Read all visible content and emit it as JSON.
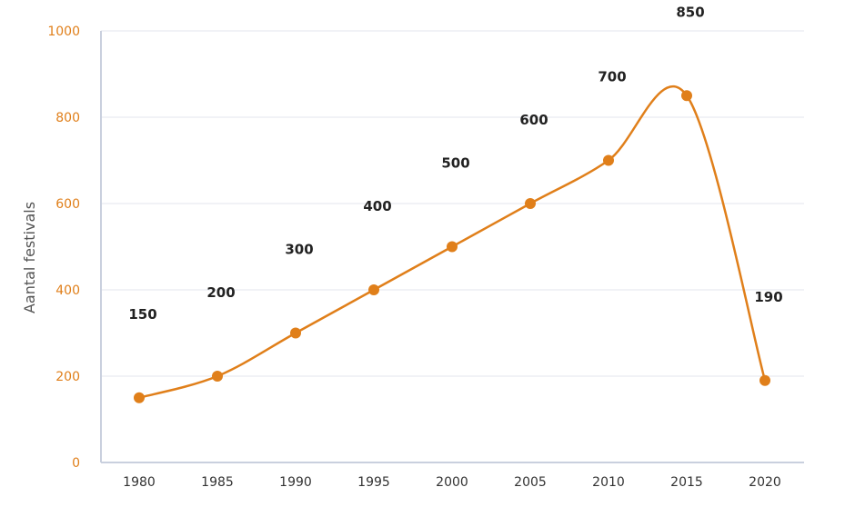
{
  "chart_data": {
    "type": "line",
    "title": "",
    "xlabel": "",
    "ylabel": "Aantal festivals",
    "x": [
      "1980",
      "1985",
      "1990",
      "1995",
      "2000",
      "2005",
      "2010",
      "2015",
      "2020"
    ],
    "series": [
      {
        "values": [
          150,
          200,
          300,
          400,
          500,
          600,
          700,
          850,
          190
        ],
        "data_labels": [
          "150",
          "200",
          "300",
          "400",
          "500",
          "600",
          "700",
          "850",
          "190"
        ],
        "color": "#e07f1a"
      }
    ],
    "ylim": [
      0,
      1000
    ],
    "yticks": [
      "0",
      "200",
      "400",
      "600",
      "800",
      "1000"
    ],
    "grid": true,
    "legend": "none"
  }
}
